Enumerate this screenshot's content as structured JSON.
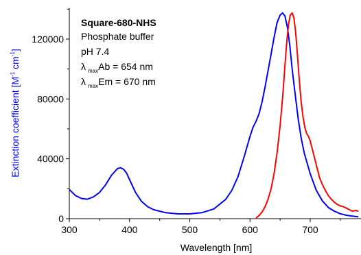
{
  "chart_data": {
    "type": "line",
    "xlabel": "Wavelength [nm]",
    "ylabel_main": "Extinction coefficient [M",
    "ylabel_sup1": "-1",
    "ylabel_mid": " cm",
    "ylabel_sup2": "-1",
    "ylabel_end": "]",
    "xlim": [
      300,
      780
    ],
    "ylim": [
      0,
      140000
    ],
    "xticks": [
      300,
      400,
      500,
      600,
      700
    ],
    "xtick_labels": [
      "300",
      "400",
      "500",
      "600",
      "700"
    ],
    "yticks": [
      0,
      40000,
      80000,
      120000
    ],
    "ytick_labels": [
      "0",
      "40000",
      "80000",
      "120000"
    ],
    "grid": false,
    "legend": "none",
    "ylabel_color": "#0000ff",
    "annotation": {
      "title": "Square-680-NHS",
      "line1": "Phosphate buffer",
      "line2": "pH 7.4",
      "abs_lambda": "λ",
      "abs_sub": "max",
      "abs_text": "Ab = 654 nm",
      "em_lambda": "λ",
      "em_sub": "max",
      "em_text": "Em = 670 nm"
    },
    "series": [
      {
        "color": "#0000ff",
        "x": [
          300,
          310,
          320,
          330,
          340,
          350,
          360,
          370,
          380,
          385,
          390,
          395,
          400,
          410,
          420,
          430,
          440,
          460,
          480,
          500,
          520,
          540,
          560,
          570,
          580,
          590,
          600,
          605,
          610,
          615,
          620,
          625,
          630,
          635,
          640,
          645,
          650,
          654,
          658,
          662,
          666,
          670,
          675,
          680,
          685,
          690,
          700,
          710,
          720,
          730,
          740,
          750,
          760,
          770,
          780
        ],
        "y": [
          19500,
          15500,
          13500,
          13000,
          14500,
          17500,
          22500,
          29000,
          33500,
          34000,
          33000,
          30500,
          26000,
          17500,
          11500,
          8000,
          6000,
          4000,
          3200,
          3200,
          4000,
          6500,
          13000,
          19000,
          28000,
          41000,
          55000,
          61000,
          65000,
          70000,
          78000,
          88000,
          99000,
          110000,
          121000,
          131000,
          136000,
          137500,
          135500,
          128000,
          116000,
          100000,
          83000,
          67000,
          54000,
          44000,
          30000,
          19000,
          12000,
          7500,
          5000,
          3300,
          2300,
          1700,
          1200
        ]
      },
      {
        "color": "#ff0000",
        "x": [
          610,
          615,
          620,
          625,
          630,
          635,
          640,
          645,
          650,
          655,
          658,
          661,
          664,
          667,
          670,
          673,
          676,
          679,
          682,
          685,
          688,
          691,
          694,
          697,
          700,
          705,
          710,
          715,
          720,
          725,
          730,
          735,
          740,
          745,
          750,
          755,
          760,
          765,
          770,
          775,
          780
        ],
        "y": [
          500,
          2000,
          4500,
          8000,
          13000,
          20000,
          30000,
          44000,
          62000,
          85000,
          102000,
          118000,
          130000,
          136000,
          137500,
          134000,
          124000,
          108000,
          92000,
          78000,
          68000,
          61000,
          57000,
          55000,
          52000,
          44000,
          36000,
          28000,
          23000,
          19000,
          15500,
          13000,
          11000,
          9500,
          8500,
          8000,
          7000,
          6000,
          5000,
          5500,
          5000
        ]
      }
    ]
  }
}
